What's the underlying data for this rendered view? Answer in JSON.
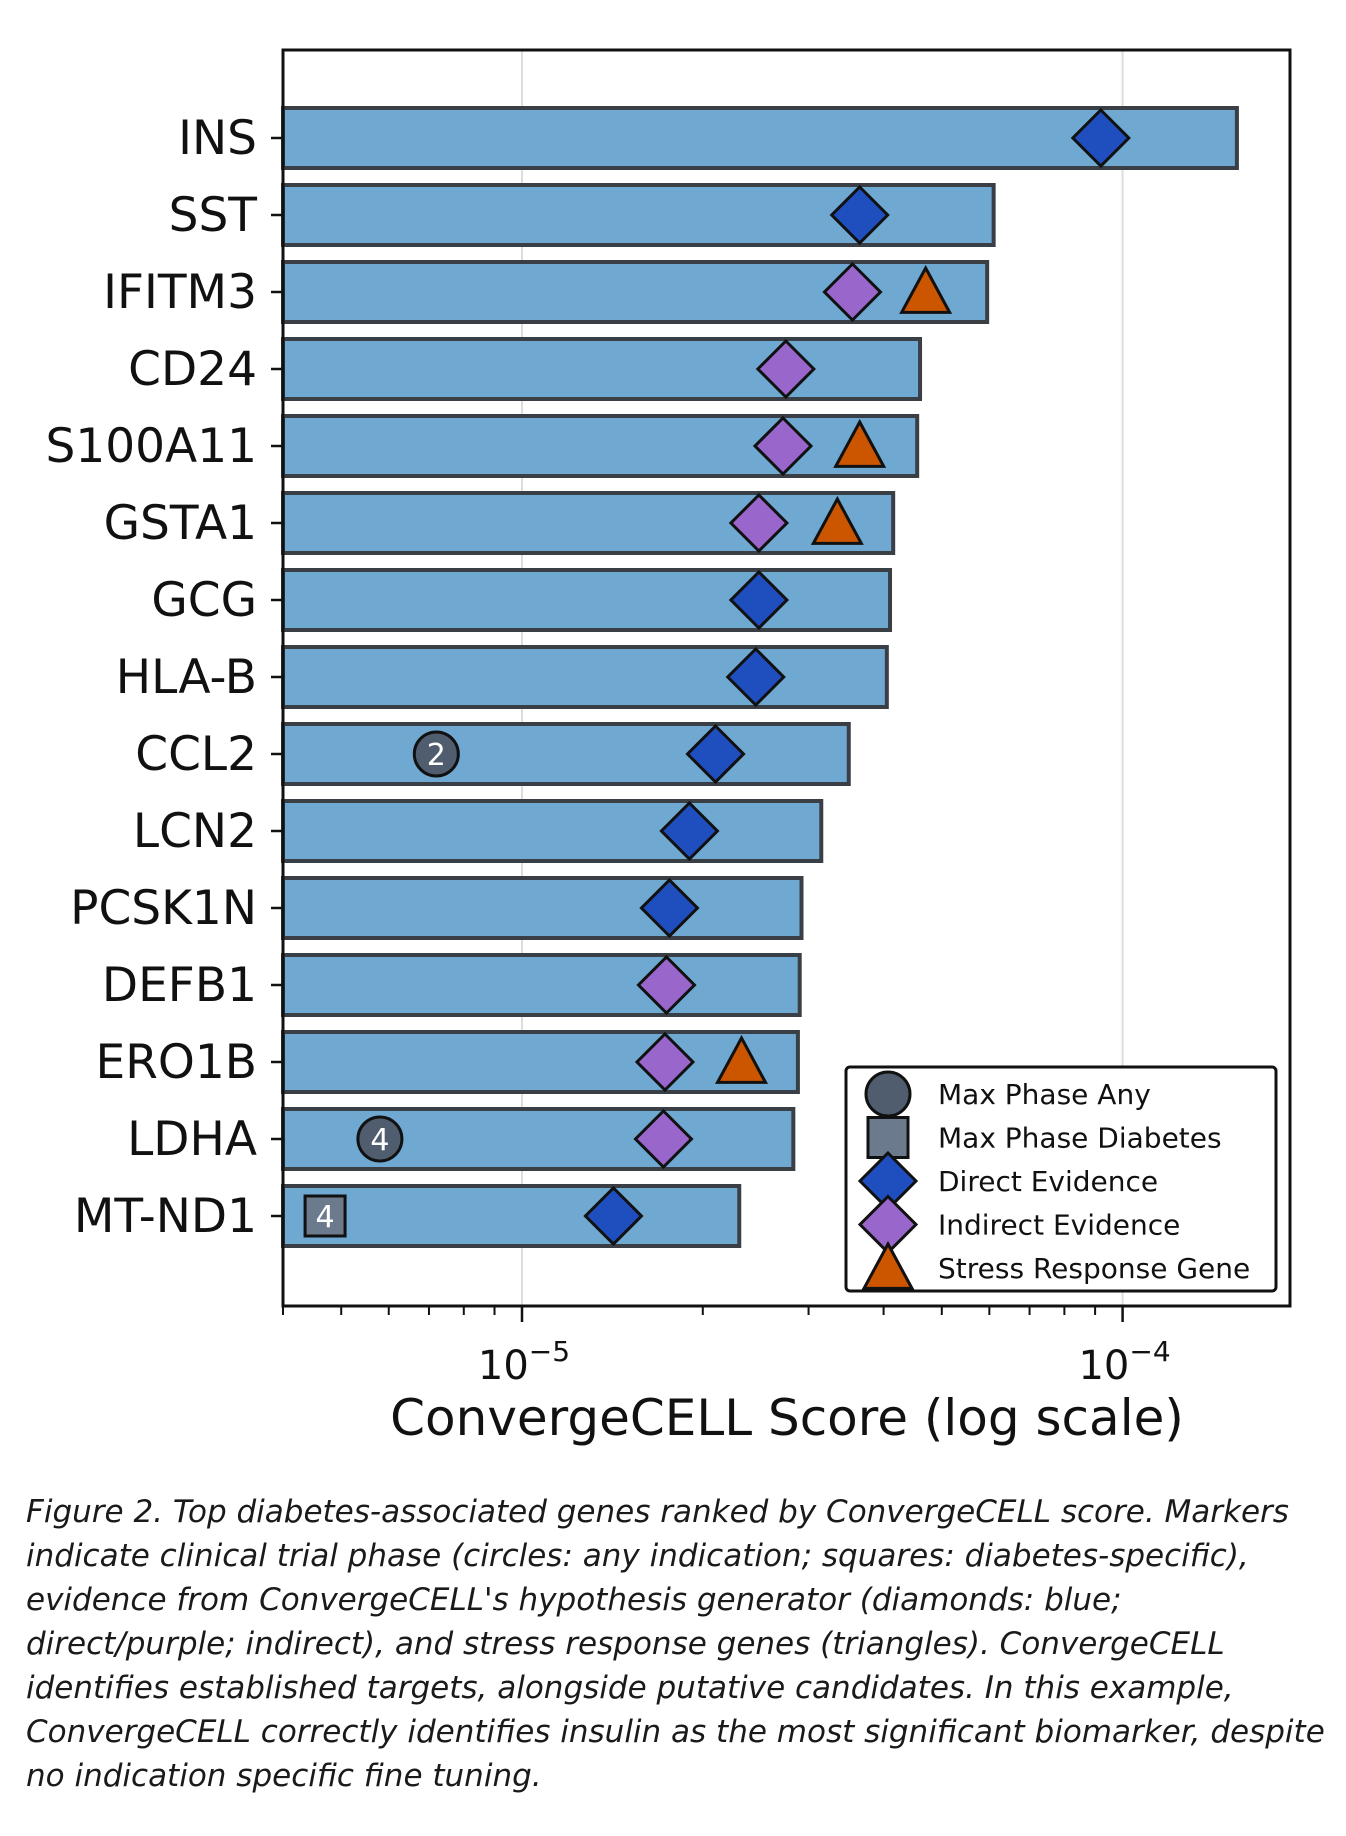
{
  "chart_data": {
    "type": "bar",
    "orientation": "horizontal",
    "x_scale": "log",
    "xlim": [
      4e-06,
      0.00019
    ],
    "xlabel": "ConvergeCELL Score (log scale)",
    "x_ticks": [
      {
        "value": 1e-05,
        "base": "10",
        "exp": "−5"
      },
      {
        "value": 0.0001,
        "base": "10",
        "exp": "−4"
      }
    ],
    "grid": "vertical",
    "bar_color": "#6fa8d0",
    "colors": {
      "direct": "#1f4fbf",
      "indirect": "#9966cc",
      "stress": "#cc5500",
      "phase_any": "#4f5d6e",
      "phase_diabetes": "#6b7a8d"
    },
    "genes": [
      {
        "label": "INS",
        "score": 0.000155,
        "direct": 9.2e-05
      },
      {
        "label": "SST",
        "score": 6.1e-05,
        "direct": 3.65e-05
      },
      {
        "label": "IFITM3",
        "score": 5.95e-05,
        "indirect": 3.55e-05,
        "stress": 4.7e-05
      },
      {
        "label": "CD24",
        "score": 4.6e-05,
        "indirect": 2.75e-05
      },
      {
        "label": "S100A11",
        "score": 4.55e-05,
        "indirect": 2.72e-05,
        "stress": 3.65e-05
      },
      {
        "label": "GSTA1",
        "score": 4.15e-05,
        "indirect": 2.48e-05,
        "stress": 3.35e-05
      },
      {
        "label": "GCG",
        "score": 4.1e-05,
        "direct": 2.48e-05
      },
      {
        "label": "HLA-B",
        "score": 4.05e-05,
        "direct": 2.45e-05
      },
      {
        "label": "CCL2",
        "score": 3.5e-05,
        "direct": 2.1e-05,
        "phase_any": 2,
        "phase_any_pos": 7.2e-06
      },
      {
        "label": "LCN2",
        "score": 3.15e-05,
        "direct": 1.9e-05
      },
      {
        "label": "PCSK1N",
        "score": 2.92e-05,
        "direct": 1.76e-05
      },
      {
        "label": "DEFB1",
        "score": 2.9e-05,
        "indirect": 1.74e-05
      },
      {
        "label": "ERO1B",
        "score": 2.88e-05,
        "indirect": 1.73e-05,
        "stress": 2.32e-05
      },
      {
        "label": "LDHA",
        "score": 2.83e-05,
        "indirect": 1.72e-05,
        "phase_any": 4,
        "phase_any_pos": 5.8e-06
      },
      {
        "label": "MT-ND1",
        "score": 2.3e-05,
        "direct": 1.42e-05,
        "phase_diabetes": 4,
        "phase_diabetes_pos": 4.7e-06
      }
    ],
    "legend": {
      "placement": "bottom-right",
      "entries": [
        {
          "marker": "circle",
          "label": "Max Phase Any"
        },
        {
          "marker": "square",
          "label": "Max Phase Diabetes"
        },
        {
          "marker": "diamond-direct",
          "label": "Direct Evidence"
        },
        {
          "marker": "diamond-indirect",
          "label": "Indirect Evidence"
        },
        {
          "marker": "triangle",
          "label": "Stress Response Gene"
        }
      ]
    }
  },
  "caption": "Figure 2. Top diabetes-associated genes ranked by ConvergeCELL score. Markers indicate clinical trial phase (circles: any indication; squares: diabetes-specific), evidence from ConvergeCELL's hypothesis generator (diamonds: blue; direct/purple; indirect), and stress response genes (triangles). ConvergeCELL identifies established targets, alongside putative candidates. In this example, ConvergeCELL correctly identifies insulin as the most significant biomarker, despite no indication specific fine tuning."
}
